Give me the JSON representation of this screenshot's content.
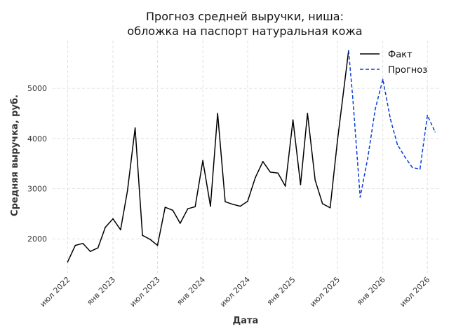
{
  "chart_data": {
    "type": "line",
    "title": [
      "Прогноз средней выручки, ниша:",
      "обложка на паспорт натуральная кожа"
    ],
    "xlabel": "Дата",
    "ylabel": "Средняя выручка, руб.",
    "x_ticks": [
      {
        "date": "2022-07-01",
        "label": "июл 2022"
      },
      {
        "date": "2023-01-01",
        "label": "янв 2023"
      },
      {
        "date": "2023-07-01",
        "label": "июл 2023"
      },
      {
        "date": "2024-01-01",
        "label": "янв 2024"
      },
      {
        "date": "2024-07-01",
        "label": "июл 2024"
      },
      {
        "date": "2025-01-01",
        "label": "янв 2025"
      },
      {
        "date": "2025-07-01",
        "label": "июл 2025"
      },
      {
        "date": "2026-01-01",
        "label": "янв 2026"
      },
      {
        "date": "2026-07-01",
        "label": "июл 2026"
      }
    ],
    "y_ticks": [
      2000,
      3000,
      4000,
      5000
    ],
    "xlim": [
      "2022-05-01",
      "2026-08-15"
    ],
    "ylim": [
      1320,
      5950
    ],
    "grid": true,
    "legend_position": "top-right",
    "series": [
      {
        "name": "Факт",
        "color": "#000000",
        "style": "solid",
        "points": [
          {
            "x": "2022-07-01",
            "y": 1540
          },
          {
            "x": "2022-08-01",
            "y": 1870
          },
          {
            "x": "2022-09-01",
            "y": 1910
          },
          {
            "x": "2022-10-01",
            "y": 1750
          },
          {
            "x": "2022-11-01",
            "y": 1820
          },
          {
            "x": "2022-12-01",
            "y": 2230
          },
          {
            "x": "2023-01-01",
            "y": 2400
          },
          {
            "x": "2023-02-01",
            "y": 2180
          },
          {
            "x": "2023-03-01",
            "y": 2960
          },
          {
            "x": "2023-04-01",
            "y": 4210
          },
          {
            "x": "2023-05-01",
            "y": 2070
          },
          {
            "x": "2023-06-01",
            "y": 1990
          },
          {
            "x": "2023-07-01",
            "y": 1870
          },
          {
            "x": "2023-08-01",
            "y": 2630
          },
          {
            "x": "2023-09-01",
            "y": 2570
          },
          {
            "x": "2023-10-01",
            "y": 2310
          },
          {
            "x": "2023-11-01",
            "y": 2600
          },
          {
            "x": "2023-12-01",
            "y": 2640
          },
          {
            "x": "2024-01-01",
            "y": 3560
          },
          {
            "x": "2024-02-01",
            "y": 2650
          },
          {
            "x": "2024-03-01",
            "y": 4500
          },
          {
            "x": "2024-04-01",
            "y": 2740
          },
          {
            "x": "2024-05-01",
            "y": 2690
          },
          {
            "x": "2024-06-01",
            "y": 2650
          },
          {
            "x": "2024-07-01",
            "y": 2750
          },
          {
            "x": "2024-08-01",
            "y": 3220
          },
          {
            "x": "2024-09-01",
            "y": 3540
          },
          {
            "x": "2024-10-01",
            "y": 3330
          },
          {
            "x": "2024-11-01",
            "y": 3310
          },
          {
            "x": "2024-12-01",
            "y": 3050
          },
          {
            "x": "2025-01-01",
            "y": 4370
          },
          {
            "x": "2025-02-01",
            "y": 3080
          },
          {
            "x": "2025-03-01",
            "y": 4500
          },
          {
            "x": "2025-04-01",
            "y": 3170
          },
          {
            "x": "2025-05-01",
            "y": 2700
          },
          {
            "x": "2025-06-01",
            "y": 2620
          },
          {
            "x": "2025-07-01",
            "y": 3970
          },
          {
            "x": "2025-08-15",
            "y": 5750
          }
        ]
      },
      {
        "name": "Прогноз",
        "color": "#0a3fd8",
        "style": "dashed",
        "points": [
          {
            "x": "2025-08-15",
            "y": 5750
          },
          {
            "x": "2025-09-01",
            "y": 4800
          },
          {
            "x": "2025-10-01",
            "y": 2830
          },
          {
            "x": "2025-11-01",
            "y": 3620
          },
          {
            "x": "2025-12-01",
            "y": 4580
          },
          {
            "x": "2026-01-01",
            "y": 5180
          },
          {
            "x": "2026-02-01",
            "y": 4380
          },
          {
            "x": "2026-03-01",
            "y": 3880
          },
          {
            "x": "2026-04-01",
            "y": 3630
          },
          {
            "x": "2026-05-01",
            "y": 3420
          },
          {
            "x": "2026-06-01",
            "y": 3390
          },
          {
            "x": "2026-07-01",
            "y": 4460
          },
          {
            "x": "2026-08-01",
            "y": 4130
          }
        ]
      }
    ]
  }
}
